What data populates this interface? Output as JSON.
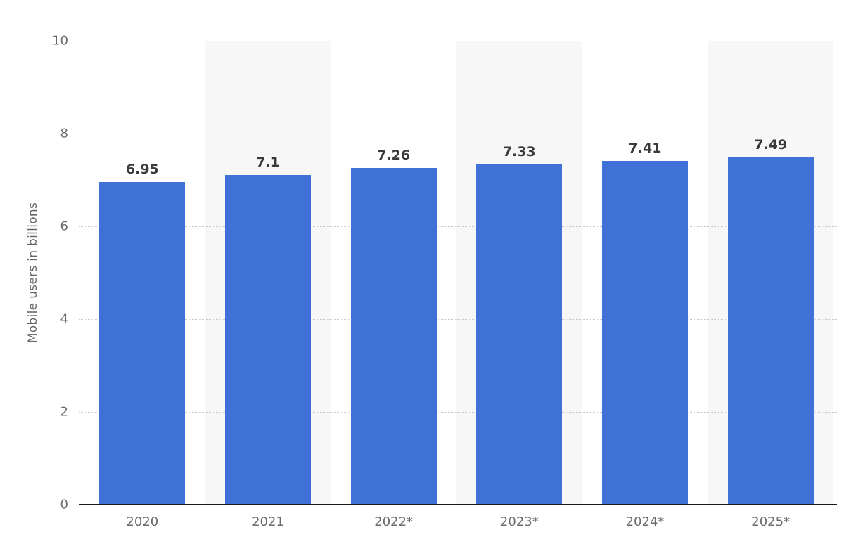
{
  "chart_data": {
    "type": "bar",
    "title": "",
    "xlabel": "",
    "ylabel": "Mobile users in billions",
    "categories": [
      "2020",
      "2021",
      "2022*",
      "2023*",
      "2024*",
      "2025*"
    ],
    "values": [
      6.95,
      7.1,
      7.26,
      7.33,
      7.41,
      7.49
    ],
    "value_labels": [
      "6.95",
      "7.1",
      "7.26",
      "7.33",
      "7.41",
      "7.49"
    ],
    "ylim": [
      0,
      10
    ],
    "yticks": [
      0,
      2,
      4,
      6,
      8,
      10
    ],
    "grid": "horizontal-dotted",
    "legend": "none",
    "colors": {
      "bar": "#4071d6",
      "band_even": "#ffffff",
      "band_odd": "#f7f7f7",
      "gridline": "#c9c9c9",
      "axis_line": "#1a1a1a",
      "tick_text": "#6b6b6b",
      "value_text": "#3a3a3a",
      "axis_title_text": "#666666"
    }
  }
}
